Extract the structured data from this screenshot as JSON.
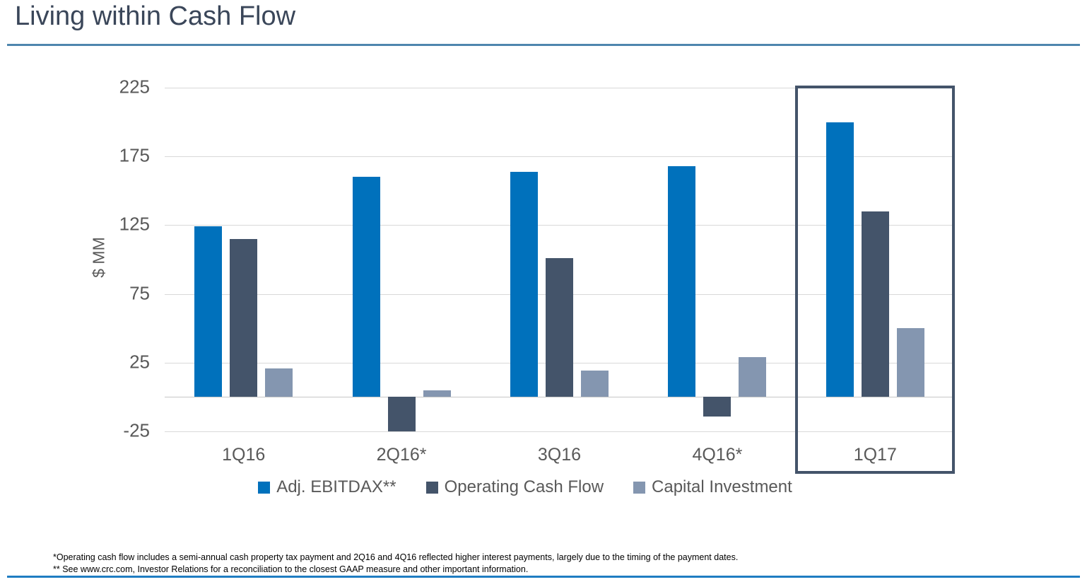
{
  "title": "Living within Cash Flow",
  "footnotes": [
    "*Operating cash flow includes a semi-annual cash property tax payment and 2Q16 and 4Q16 reflected higher interest payments, largely due to the timing of the payment dates.",
    "** See www.crc.com, Investor Relations for a reconciliation to the closest GAAP measure and other important information."
  ],
  "colors": {
    "title_text": "#3a4659",
    "top_rule": "#4e86ae",
    "bottom_rule": "#1f7dc2",
    "axis_text": "#595959",
    "gridline": "#d9d9d9",
    "highlight_box": "#44546a"
  },
  "chart_data": {
    "type": "bar",
    "title": "",
    "xlabel": "",
    "ylabel": "$ MM",
    "ylim": [
      -25,
      225
    ],
    "yticks": [
      225,
      175,
      125,
      75,
      25,
      -25
    ],
    "grid": true,
    "legend_position": "bottom",
    "categories": [
      "1Q16",
      "2Q16*",
      "3Q16",
      "4Q16*",
      "1Q17"
    ],
    "series": [
      {
        "name": "Adj. EBITDAX**",
        "color": "#0071bc",
        "values": [
          124,
          160,
          164,
          168,
          200
        ]
      },
      {
        "name": "Operating Cash Flow",
        "color": "#44546a",
        "values": [
          115,
          -25,
          101,
          -14,
          135
        ]
      },
      {
        "name": "Capital Investment",
        "color": "#8496b0",
        "values": [
          21,
          5,
          19,
          29,
          50
        ]
      }
    ],
    "highlighted_category": "1Q17"
  }
}
